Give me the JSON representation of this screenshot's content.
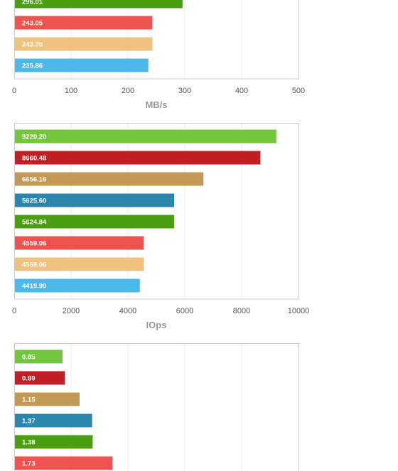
{
  "chart_data": [
    {
      "type": "bar",
      "orientation": "horizontal",
      "xlabel": "MB/s",
      "xlim": [
        0,
        500
      ],
      "ticks": [
        "0",
        "100",
        "200",
        "300",
        "400",
        "500"
      ],
      "grid": true,
      "bars": [
        {
          "value": 296.01,
          "label": "296.01",
          "color": "#4a9e12"
        },
        {
          "value": 243.05,
          "label": "243.05",
          "color": "#ef5350"
        },
        {
          "value": 243.05,
          "label": "243.05",
          "color": "#efc27f"
        },
        {
          "value": 235.86,
          "label": "235.86",
          "color": "#4db8ea"
        }
      ]
    },
    {
      "type": "bar",
      "orientation": "horizontal",
      "xlabel": "IOps",
      "xlim": [
        0,
        10000
      ],
      "ticks": [
        "0",
        "2000",
        "4000",
        "6000",
        "8000",
        "10000"
      ],
      "grid": true,
      "bars": [
        {
          "value": 9220.2,
          "label": "9220.20",
          "color": "#74c63c"
        },
        {
          "value": 8660.48,
          "label": "8660.48",
          "color": "#c21f24"
        },
        {
          "value": 6656.16,
          "label": "6656.16",
          "color": "#c49955"
        },
        {
          "value": 5625.6,
          "label": "5625.60",
          "color": "#2b86ad"
        },
        {
          "value": 5624.84,
          "label": "5624.84",
          "color": "#4a9e12"
        },
        {
          "value": 4559.06,
          "label": "4559.06",
          "color": "#ef5350"
        },
        {
          "value": 4559.06,
          "label": "4559.06",
          "color": "#efc27f"
        },
        {
          "value": 4419.9,
          "label": "4419.90",
          "color": "#4db8ea"
        }
      ]
    },
    {
      "type": "bar",
      "orientation": "horizontal",
      "xlabel": "",
      "xlim": [
        0,
        5
      ],
      "ticks": [],
      "grid": true,
      "bars": [
        {
          "value": 0.85,
          "label": "0.85",
          "color": "#74c63c"
        },
        {
          "value": 0.89,
          "label": "0.89",
          "color": "#c21f24"
        },
        {
          "value": 1.15,
          "label": "1.15",
          "color": "#c49955"
        },
        {
          "value": 1.37,
          "label": "1.37",
          "color": "#2b86ad"
        },
        {
          "value": 1.38,
          "label": "1.38",
          "color": "#4a9e12"
        },
        {
          "value": 1.73,
          "label": "1.73",
          "color": "#ef5350"
        }
      ]
    }
  ]
}
